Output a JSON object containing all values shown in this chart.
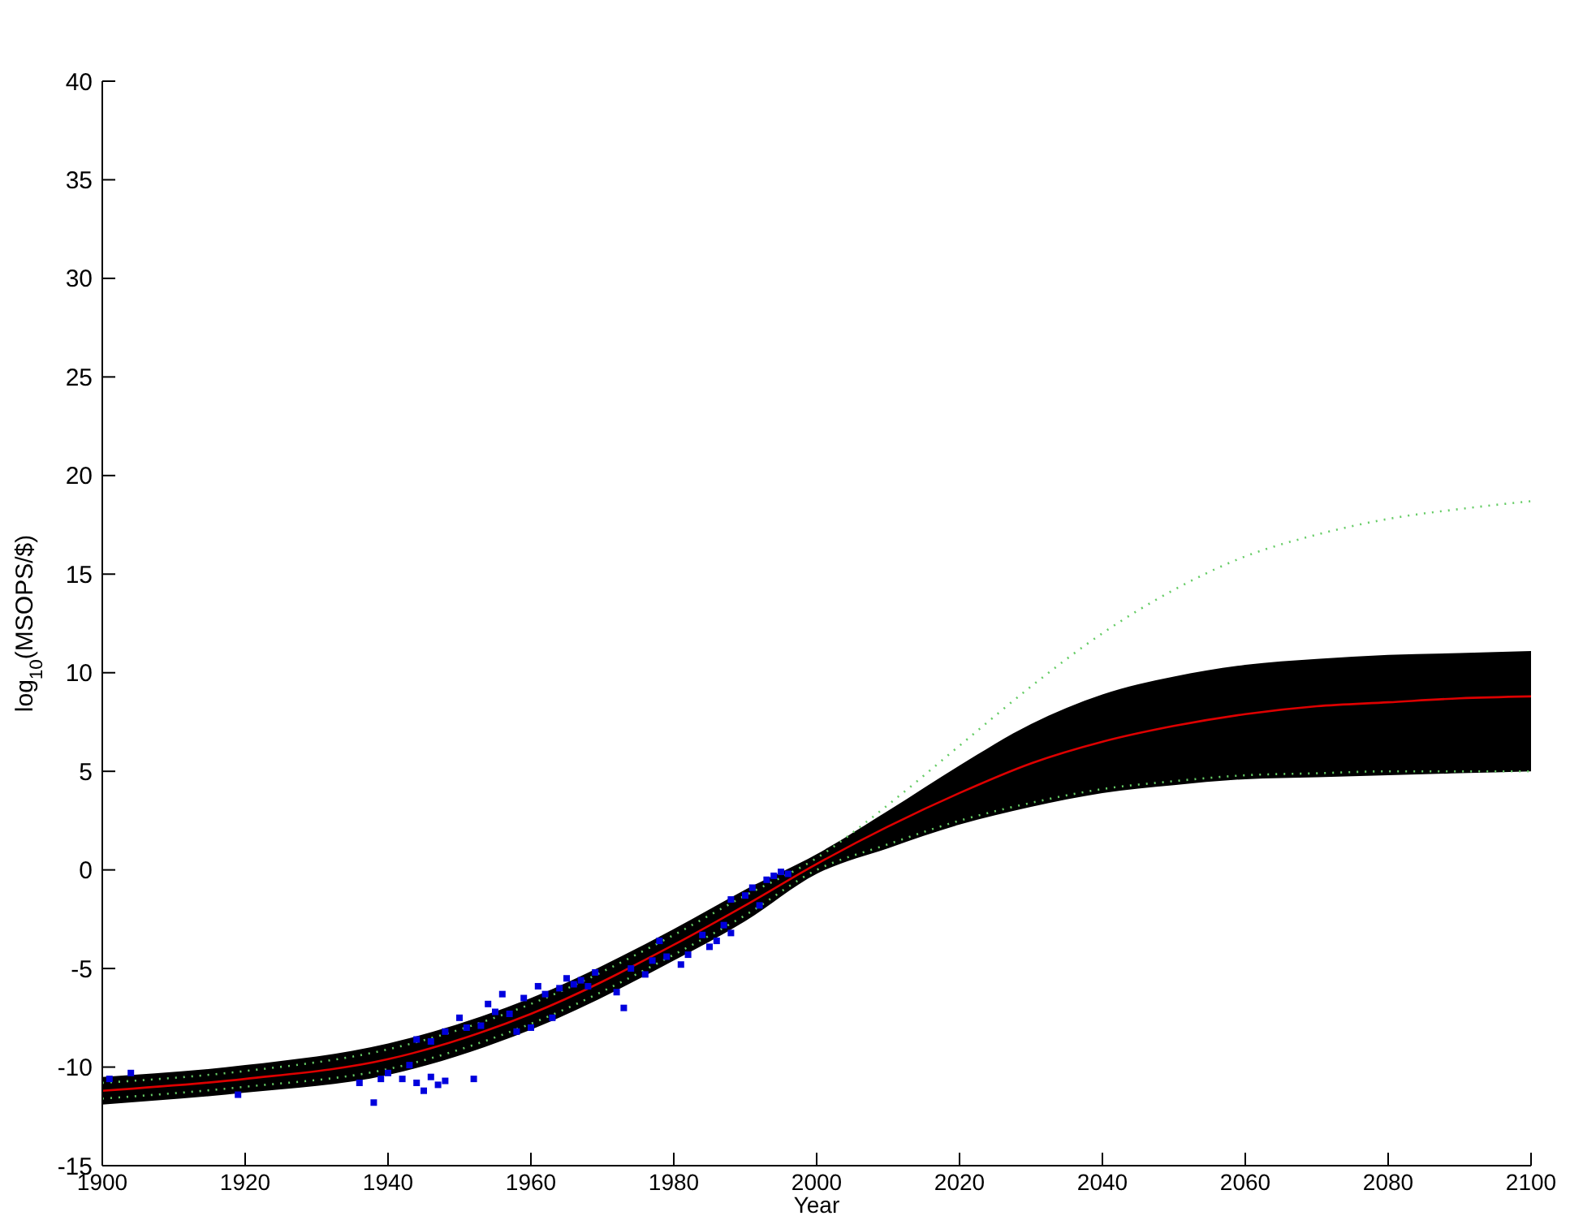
{
  "chart_data": {
    "type": "line",
    "xlabel": "Year",
    "ylabel": "log$_{10}$(MSOPS/$)",
    "x": [
      1900,
      1920,
      1940,
      1960,
      1980,
      1990,
      2000,
      2010,
      2020,
      2030,
      2040,
      2050,
      2060,
      2070,
      2080,
      2090,
      2100
    ],
    "xlim": [
      1900,
      2100
    ],
    "xticks": [
      1900,
      1920,
      1940,
      1960,
      1980,
      2000,
      2020,
      2040,
      2060,
      2080,
      2100
    ],
    "ylim": [
      -15,
      40
    ],
    "yticks": [
      -15,
      -10,
      -5,
      0,
      5,
      10,
      15,
      20,
      25,
      30,
      35,
      40
    ],
    "grid": false,
    "series": [
      {
        "type": "area",
        "color": "#000000",
        "values": [
          null,
          null,
          null,
          null,
          null,
          null,
          null,
          null,
          null,
          null,
          null,
          null,
          null,
          null,
          null,
          null,
          null
        ],
        "lower": [
          -11.9,
          -11.3,
          -10.4,
          -8.1,
          -4.6,
          -2.6,
          -0.2,
          1.1,
          2.3,
          3.2,
          3.9,
          4.3,
          4.6,
          4.7,
          4.8,
          4.9,
          5.0
        ],
        "upper": [
          -10.5,
          -9.9,
          -8.8,
          -6.5,
          -3.0,
          -1.0,
          0.8,
          3.0,
          5.3,
          7.4,
          8.9,
          9.8,
          10.4,
          10.7,
          10.9,
          11.0,
          11.1
        ]
      },
      {
        "color": "#66cc66",
        "line_style": "dotted",
        "values": [
          -10.8,
          -10.2,
          -9.1,
          -6.8,
          -3.3,
          -1.3,
          0.6,
          3.3,
          6.3,
          9.3,
          12.0,
          14.2,
          15.9,
          17.0,
          17.8,
          18.3,
          18.7
        ]
      },
      {
        "color": "#66cc66",
        "line_style": "dotted",
        "values": [
          -11.6,
          -11.0,
          -10.1,
          -7.8,
          -4.3,
          -2.3,
          0.0,
          1.3,
          2.5,
          3.4,
          4.1,
          4.5,
          4.8,
          4.9,
          5.0,
          5.0,
          5.0
        ]
      },
      {
        "color": "#dd0000",
        "line_style": "solid",
        "values": [
          -11.2,
          -10.6,
          -9.6,
          -7.3,
          -3.8,
          -1.8,
          0.3,
          2.2,
          3.9,
          5.4,
          6.5,
          7.3,
          7.9,
          8.3,
          8.5,
          8.7,
          8.8
        ]
      },
      {
        "type": "scatter",
        "color": "#0000dd",
        "marker": "square",
        "x": [
          1901,
          1904,
          1919,
          1936,
          1938,
          1939,
          1940,
          1942,
          1943,
          1944,
          1945,
          1946,
          1947,
          1948,
          1944,
          1946,
          1948,
          1950,
          1951,
          1952,
          1953,
          1954,
          1955,
          1956,
          1957,
          1958,
          1959,
          1960,
          1961,
          1962,
          1963,
          1964,
          1965,
          1966,
          1967,
          1968,
          1969,
          1972,
          1973,
          1974,
          1976,
          1977,
          1978,
          1979,
          1981,
          1982,
          1984,
          1985,
          1986,
          1987,
          1988,
          1988,
          1990,
          1991,
          1992,
          1993,
          1994,
          1995,
          1996
        ],
        "values": [
          -10.6,
          -10.3,
          -11.4,
          -10.8,
          -11.8,
          -10.6,
          -10.3,
          -10.6,
          -9.9,
          -10.8,
          -11.2,
          -10.5,
          -10.9,
          -10.7,
          -8.6,
          -8.7,
          -8.2,
          -7.5,
          -8.0,
          -10.6,
          -7.9,
          -6.8,
          -7.2,
          -6.3,
          -7.3,
          -8.2,
          -6.5,
          -8.0,
          -5.9,
          -6.3,
          -7.5,
          -6.0,
          -5.5,
          -5.8,
          -5.6,
          -5.9,
          -5.2,
          -6.2,
          -7.0,
          -5.0,
          -5.3,
          -4.6,
          -3.6,
          -4.4,
          -4.8,
          -4.3,
          -3.3,
          -3.9,
          -3.6,
          -2.8,
          -1.5,
          -3.2,
          -1.3,
          -0.9,
          -1.8,
          -0.5,
          -0.3,
          -0.1,
          -0.2
        ]
      }
    ]
  }
}
